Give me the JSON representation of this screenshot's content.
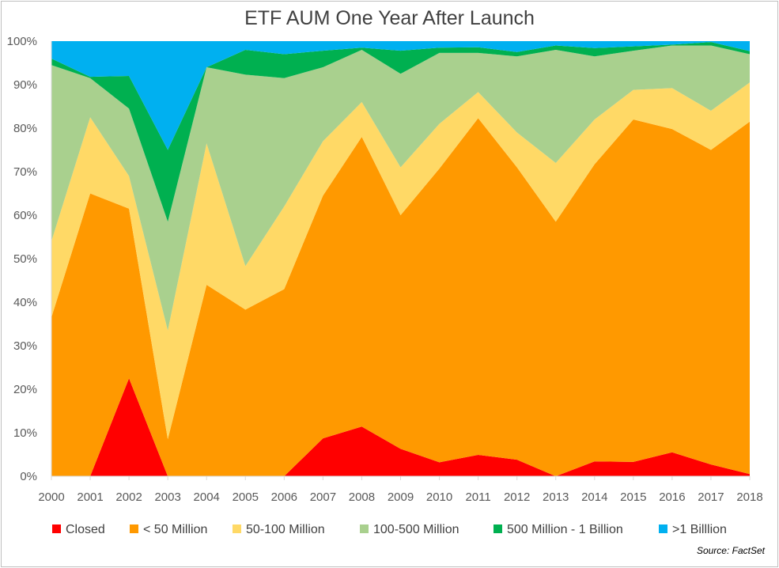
{
  "chart_data": {
    "type": "area",
    "stacked": true,
    "normalized": true,
    "title": "ETF AUM One Year After Launch",
    "x": [
      "2000",
      "2001",
      "2002",
      "2003",
      "2004",
      "2005",
      "2006",
      "2007",
      "2008",
      "2009",
      "2010",
      "2011",
      "2012",
      "2013",
      "2014",
      "2015",
      "2016",
      "2017",
      "2018"
    ],
    "ylim": [
      0,
      100
    ],
    "yticks": [
      "0%",
      "10%",
      "20%",
      "30%",
      "40%",
      "50%",
      "60%",
      "70%",
      "80%",
      "90%",
      "100%"
    ],
    "grid": false,
    "legend_position": "bottom",
    "series": [
      {
        "name": "Closed",
        "color": "#ff0000",
        "values": [
          0,
          0,
          22.5,
          0,
          0,
          0,
          0,
          8.7,
          11.4,
          6.3,
          3.2,
          4.9,
          3.8,
          0,
          3.4,
          3.3,
          5.5,
          2.7,
          0.5
        ]
      },
      {
        "name": "< 50 Million",
        "color": "#ff9900",
        "values": [
          36.5,
          65,
          39,
          8.5,
          44,
          38.3,
          43,
          55.8,
          66.6,
          53.7,
          67.5,
          77.4,
          67.2,
          58.5,
          68.3,
          78.7,
          74.3,
          72.3,
          81
        ]
      },
      {
        "name": "50-100 Million",
        "color": "#ffd966",
        "values": [
          17.5,
          17.5,
          7.5,
          25,
          32.5,
          10,
          19,
          12.5,
          8,
          11,
          10.3,
          6,
          8,
          13.5,
          10.3,
          6.8,
          9.4,
          9,
          9
        ]
      },
      {
        "name": "100-500 Million",
        "color": "#a9d08e",
        "values": [
          40.5,
          9,
          15.5,
          25,
          17.5,
          44,
          29.5,
          17,
          12,
          21.5,
          16.3,
          9,
          17.5,
          26,
          14.5,
          9,
          9.8,
          15,
          6.5
        ]
      },
      {
        "name": "500 Million - 1 Billion",
        "color": "#00b050",
        "values": [
          1.5,
          0.3,
          7.5,
          16.5,
          0,
          5.7,
          5.5,
          3.8,
          0.5,
          5.3,
          1.2,
          1.3,
          1,
          1,
          1.9,
          1,
          0.2,
          0.8,
          0.7
        ]
      },
      {
        "name": ">1 Billlion",
        "color": "#00b0f0",
        "values": [
          4,
          8.2,
          8,
          25,
          6,
          2,
          3,
          2.2,
          1.5,
          2.2,
          1.5,
          1.4,
          2.5,
          1,
          1.6,
          1.2,
          0.8,
          0.2,
          2.3
        ]
      }
    ]
  },
  "source_note": "Source: FactSet"
}
